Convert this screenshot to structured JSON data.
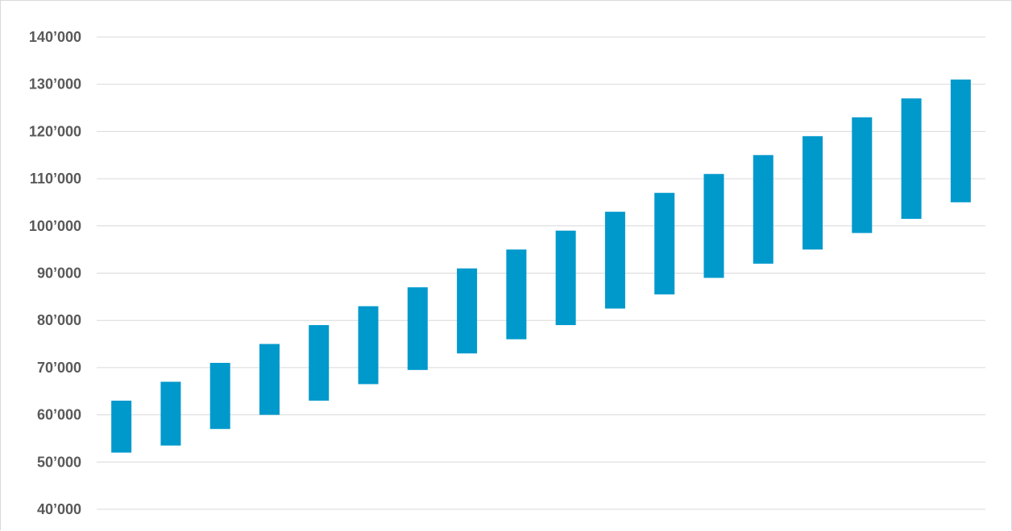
{
  "chart_data": {
    "type": "bar",
    "subtype": "floating-range",
    "title": "",
    "xlabel": "",
    "ylabel": "",
    "ylim": [
      40000,
      140000
    ],
    "y_ticks": [
      {
        "value": 140000,
        "label": "140’000"
      },
      {
        "value": 130000,
        "label": "130’000"
      },
      {
        "value": 120000,
        "label": "120’000"
      },
      {
        "value": 110000,
        "label": "110’000"
      },
      {
        "value": 100000,
        "label": "100’000"
      },
      {
        "value": 90000,
        "label": "90’000"
      },
      {
        "value": 80000,
        "label": "80’000"
      },
      {
        "value": 70000,
        "label": "70’000"
      },
      {
        "value": 60000,
        "label": "60’000"
      },
      {
        "value": 50000,
        "label": "50’000"
      },
      {
        "value": 40000,
        "label": "40’000"
      }
    ],
    "grid": true,
    "bar_color": "#0099cc",
    "series": [
      {
        "low": [
          52000,
          53500,
          57000,
          60000,
          63000,
          66500,
          69500,
          73000,
          76000,
          79000,
          82500,
          85500,
          89000,
          92000,
          95000,
          98500,
          101500,
          105000
        ],
        "high": [
          63000,
          67000,
          71000,
          75000,
          79000,
          83000,
          87000,
          91000,
          95000,
          99000,
          103000,
          107000,
          111000,
          115000,
          119000,
          123000,
          127000,
          131000
        ]
      }
    ]
  }
}
